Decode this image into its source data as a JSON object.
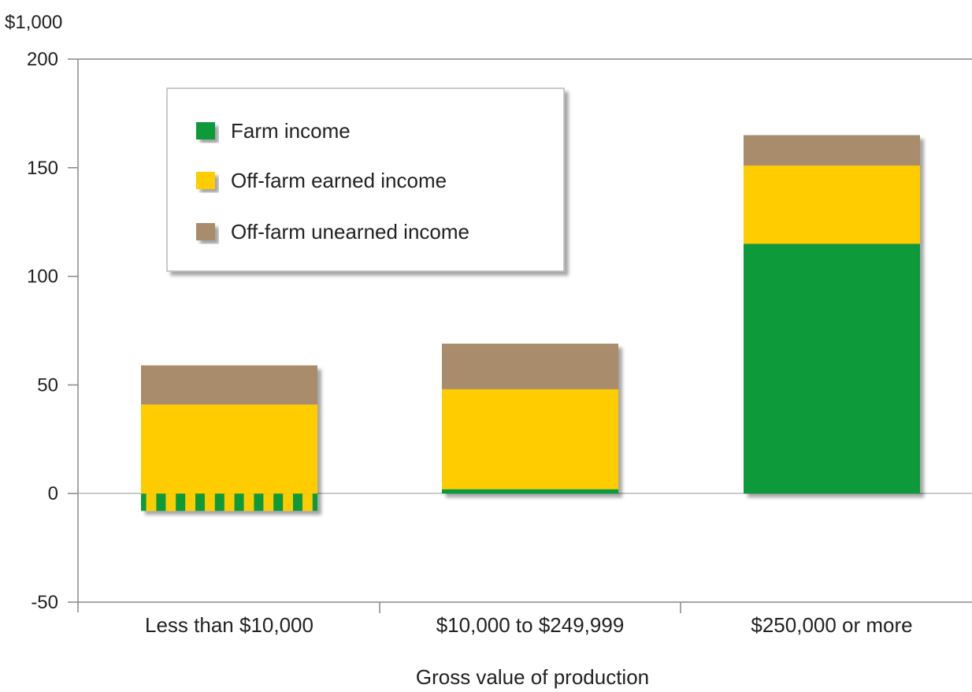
{
  "chart_data": {
    "type": "bar",
    "stacked": true,
    "unit_label": "$1,000",
    "xlabel": "Gross value of production",
    "ylabel": "",
    "ylim": [
      -50,
      200
    ],
    "yticks": [
      "200",
      "150",
      "100",
      "50",
      "0",
      "-50"
    ],
    "categories": [
      "Less than $10,000",
      "$10,000 to $249,999",
      "$250,000 or more"
    ],
    "series": [
      {
        "name": "Farm income",
        "color": "#0a9a3a",
        "values": [
          -8,
          2,
          115
        ]
      },
      {
        "name": "Off-farm earned income",
        "color": "#ffcc00",
        "values": [
          41,
          46,
          36
        ]
      },
      {
        "name": "Off-farm unearned income",
        "color": "#a88c6c",
        "values": [
          18,
          21,
          14
        ]
      }
    ],
    "legend_position": "top-left",
    "grid": false
  }
}
